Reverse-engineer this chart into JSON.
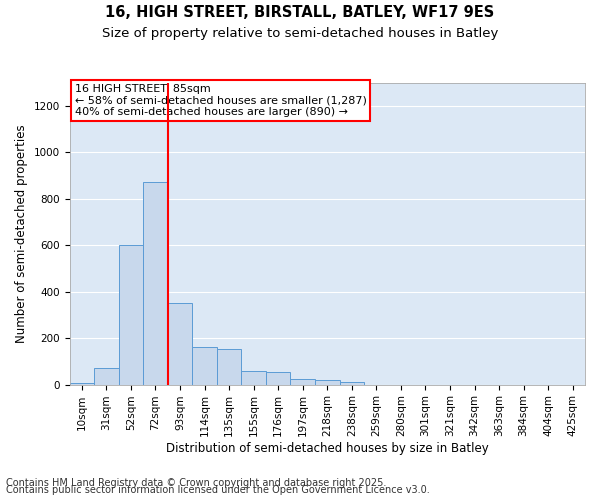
{
  "title": "16, HIGH STREET, BIRSTALL, BATLEY, WF17 9ES",
  "subtitle": "Size of property relative to semi-detached houses in Batley",
  "xlabel": "Distribution of semi-detached houses by size in Batley",
  "ylabel": "Number of semi-detached properties",
  "categories": [
    "10sqm",
    "31sqm",
    "52sqm",
    "72sqm",
    "93sqm",
    "114sqm",
    "135sqm",
    "155sqm",
    "176sqm",
    "197sqm",
    "218sqm",
    "238sqm",
    "259sqm",
    "280sqm",
    "301sqm",
    "321sqm",
    "342sqm",
    "363sqm",
    "384sqm",
    "404sqm",
    "425sqm"
  ],
  "values": [
    5,
    70,
    600,
    870,
    350,
    160,
    155,
    60,
    55,
    25,
    20,
    10,
    0,
    0,
    0,
    0,
    0,
    0,
    0,
    0,
    0
  ],
  "bar_color": "#c8d8ec",
  "bar_edge_color": "#5b9bd5",
  "red_line_after_index": 3,
  "property_size": 85,
  "pct_smaller": 58,
  "n_smaller": 1287,
  "pct_larger": 40,
  "n_larger": 890,
  "footer_line1": "Contains HM Land Registry data © Crown copyright and database right 2025.",
  "footer_line2": "Contains public sector information licensed under the Open Government Licence v3.0.",
  "ylim_max": 1300,
  "yticks": [
    0,
    200,
    400,
    600,
    800,
    1000,
    1200
  ],
  "background_color": "#dce8f5",
  "grid_color": "#ffffff",
  "title_fontsize": 10.5,
  "subtitle_fontsize": 9.5,
  "axis_label_fontsize": 8.5,
  "tick_fontsize": 7.5,
  "annot_fontsize": 8,
  "footer_fontsize": 7
}
